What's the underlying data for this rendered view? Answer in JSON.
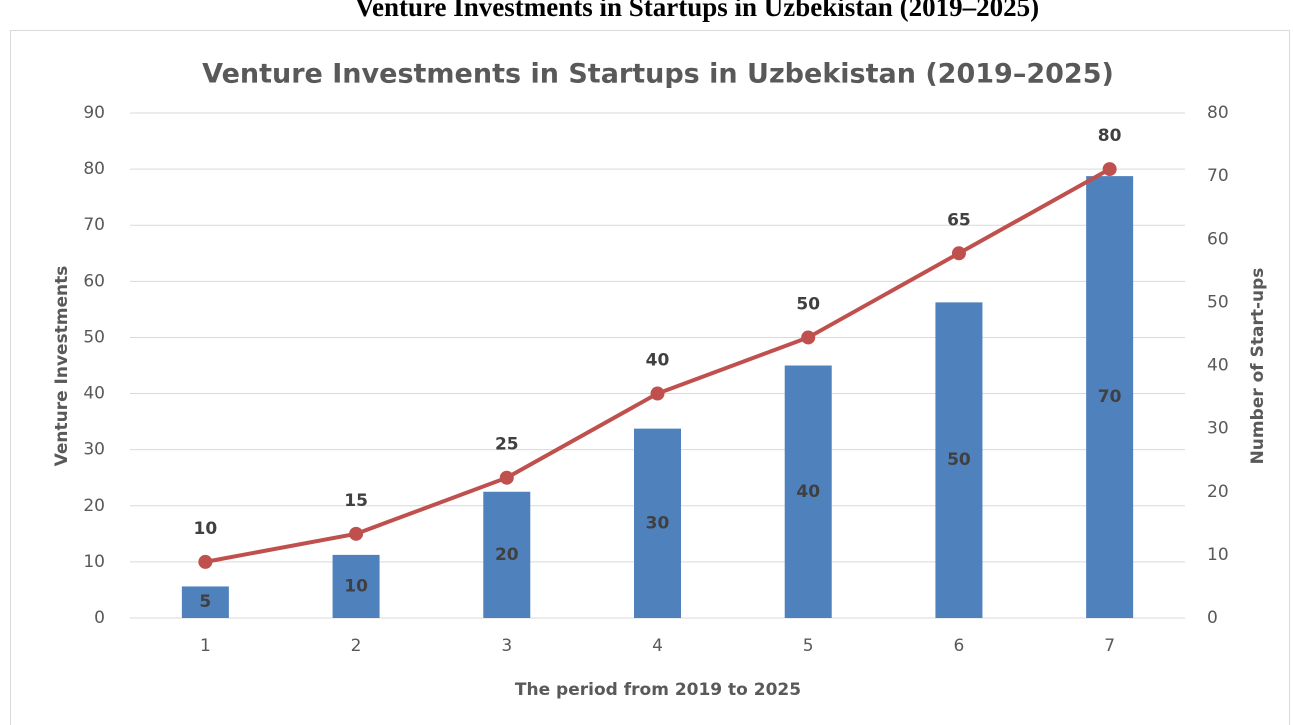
{
  "caption": "Venture Investments in Startups in Uzbekistan (2019–2025)",
  "chart_data": {
    "type": "combo",
    "title": "Venture Investments in Startups in Uzbekistan (2019–2025)",
    "x_label": "The period from 2019 to 2025",
    "y_label": "Venture Investments",
    "y2_label": "Number of Start-ups",
    "categories": [
      "1",
      "2",
      "3",
      "4",
      "5",
      "6",
      "7"
    ],
    "series": [
      {
        "type": "bar",
        "axis": "y2",
        "color": "#4f81bd",
        "values": [
          5,
          10,
          20,
          30,
          40,
          50,
          70
        ]
      },
      {
        "type": "line",
        "axis": "y",
        "color": "#c0504d",
        "values": [
          10,
          15,
          25,
          40,
          50,
          65,
          80
        ]
      }
    ],
    "ylim": [
      0,
      90
    ],
    "yticks": [
      0,
      10,
      20,
      30,
      40,
      50,
      60,
      70,
      80,
      90
    ],
    "y2lim": [
      0,
      80
    ],
    "y2ticks": [
      0,
      10,
      20,
      30,
      40,
      50,
      60,
      70,
      80
    ],
    "grid": true
  }
}
